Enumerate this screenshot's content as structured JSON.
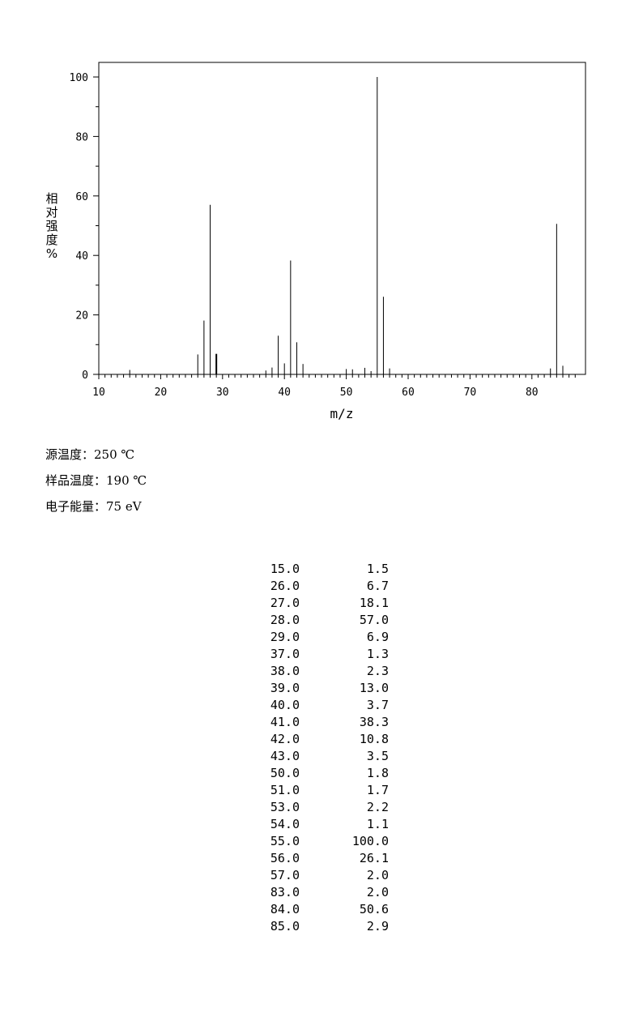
{
  "chart_data": {
    "type": "bar",
    "xlabel": "m/z",
    "ylabel": "相对强度%",
    "xlim": [
      10,
      88
    ],
    "ylim": [
      0,
      105
    ],
    "xticks": [
      10,
      20,
      30,
      40,
      50,
      60,
      70,
      80
    ],
    "yticks": [
      0,
      20,
      40,
      60,
      80,
      100
    ],
    "grid": false,
    "x": [
      15.0,
      26.0,
      27.0,
      28.0,
      29.0,
      37.0,
      38.0,
      39.0,
      40.0,
      41.0,
      42.0,
      43.0,
      50.0,
      51.0,
      53.0,
      54.0,
      55.0,
      56.0,
      57.0,
      83.0,
      84.0,
      85.0
    ],
    "values": [
      1.5,
      6.7,
      18.1,
      57.0,
      6.9,
      1.3,
      2.3,
      13.0,
      3.7,
      38.3,
      10.8,
      3.5,
      1.8,
      1.7,
      2.2,
      1.1,
      100.0,
      26.1,
      2.0,
      2.0,
      50.6,
      2.9
    ]
  },
  "conditions": [
    {
      "label": "源温度：",
      "value": "250 ℃"
    },
    {
      "label": "样品温度：",
      "value": "190 ℃"
    },
    {
      "label": "电子能量：",
      "value": "75 eV"
    }
  ],
  "peak_table": [
    {
      "mz": "15.0",
      "intensity": "1.5"
    },
    {
      "mz": "26.0",
      "intensity": "6.7"
    },
    {
      "mz": "27.0",
      "intensity": "18.1"
    },
    {
      "mz": "28.0",
      "intensity": "57.0"
    },
    {
      "mz": "29.0",
      "intensity": "6.9"
    },
    {
      "mz": "37.0",
      "intensity": "1.3"
    },
    {
      "mz": "38.0",
      "intensity": "2.3"
    },
    {
      "mz": "39.0",
      "intensity": "13.0"
    },
    {
      "mz": "40.0",
      "intensity": "3.7"
    },
    {
      "mz": "41.0",
      "intensity": "38.3"
    },
    {
      "mz": "42.0",
      "intensity": "10.8"
    },
    {
      "mz": "43.0",
      "intensity": "3.5"
    },
    {
      "mz": "50.0",
      "intensity": "1.8"
    },
    {
      "mz": "51.0",
      "intensity": "1.7"
    },
    {
      "mz": "53.0",
      "intensity": "2.2"
    },
    {
      "mz": "54.0",
      "intensity": "1.1"
    },
    {
      "mz": "55.0",
      "intensity": "100.0"
    },
    {
      "mz": "56.0",
      "intensity": "26.1"
    },
    {
      "mz": "57.0",
      "intensity": "2.0"
    },
    {
      "mz": "83.0",
      "intensity": "2.0"
    },
    {
      "mz": "84.0",
      "intensity": "50.6"
    },
    {
      "mz": "85.0",
      "intensity": "2.9"
    }
  ]
}
